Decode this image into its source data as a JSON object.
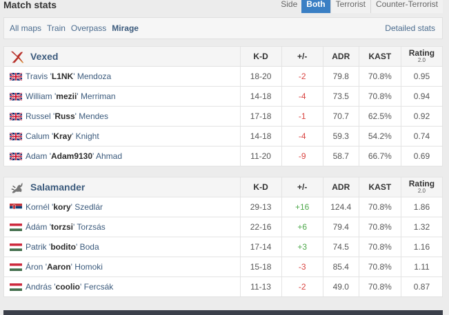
{
  "header": {
    "title": "Match stats",
    "side_tabs": [
      "Side",
      "Both",
      "Terrorist",
      "Counter-Terrorist"
    ],
    "active_side_tab": "Both"
  },
  "maps": {
    "items": [
      "All maps",
      "Train",
      "Overpass",
      "Mirage"
    ],
    "active": "Mirage",
    "detailed_link": "Detailed stats"
  },
  "columns": {
    "kd": "K-D",
    "pm": "+/-",
    "adr": "ADR",
    "kast": "KAST",
    "rating": "Rating",
    "rating_version": "2.0"
  },
  "teams": [
    {
      "name": "Vexed",
      "logo_icon": "vexed-logo-icon",
      "players": [
        {
          "flag": "gb",
          "first": "Travis",
          "nick": "L1NK",
          "last": "Mendoza",
          "kd": "18-20",
          "pm": "-2",
          "adr": "79.8",
          "kast": "70.8%",
          "rating": "0.95"
        },
        {
          "flag": "gb",
          "first": "William",
          "nick": "mezii",
          "last": "Merriman",
          "kd": "14-18",
          "pm": "-4",
          "adr": "73.5",
          "kast": "70.8%",
          "rating": "0.94"
        },
        {
          "flag": "gb",
          "first": "Russel",
          "nick": "Russ",
          "last": "Mendes",
          "kd": "17-18",
          "pm": "-1",
          "adr": "70.7",
          "kast": "62.5%",
          "rating": "0.92"
        },
        {
          "flag": "gb",
          "first": "Calum",
          "nick": "Kray",
          "last": "Knight",
          "kd": "14-18",
          "pm": "-4",
          "adr": "59.3",
          "kast": "54.2%",
          "rating": "0.74"
        },
        {
          "flag": "gb",
          "first": "Adam",
          "nick": "Adam9130",
          "last": "Ahmad",
          "kd": "11-20",
          "pm": "-9",
          "adr": "58.7",
          "kast": "66.7%",
          "rating": "0.69"
        }
      ]
    },
    {
      "name": "Salamander",
      "logo_icon": "salamander-logo-icon",
      "players": [
        {
          "flag": "rs",
          "first": "Kornél",
          "nick": "kory",
          "last": "Szedlár",
          "kd": "29-13",
          "pm": "+16",
          "adr": "124.4",
          "kast": "70.8%",
          "rating": "1.86"
        },
        {
          "flag": "hu",
          "first": "Ádám",
          "nick": "torzsi",
          "last": "Torzsás",
          "kd": "22-16",
          "pm": "+6",
          "adr": "79.4",
          "kast": "70.8%",
          "rating": "1.32"
        },
        {
          "flag": "hu",
          "first": "Patrik",
          "nick": "bodito",
          "last": "Boda",
          "kd": "17-14",
          "pm": "+3",
          "adr": "74.5",
          "kast": "70.8%",
          "rating": "1.16"
        },
        {
          "flag": "hu",
          "first": "Áron",
          "nick": "Aaron",
          "last": "Homoki",
          "kd": "15-18",
          "pm": "-3",
          "adr": "85.4",
          "kast": "70.8%",
          "rating": "1.11"
        },
        {
          "flag": "hu",
          "first": "András",
          "nick": "coolio",
          "last": "Fercsák",
          "kd": "11-13",
          "pm": "-2",
          "adr": "49.0",
          "kast": "70.8%",
          "rating": "0.87"
        }
      ]
    }
  ],
  "colors": {
    "accent": "#3a7fc4",
    "link": "#3b5a7c",
    "negative": "#d9423f",
    "positive": "#4da84a"
  }
}
